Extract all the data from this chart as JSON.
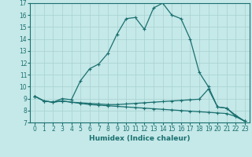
{
  "xlabel": "Humidex (Indice chaleur)",
  "bg_color": "#c5e8e8",
  "grid_color": "#a8d0d0",
  "line_color": "#1a7070",
  "xlim": [
    -0.5,
    23.5
  ],
  "ylim": [
    7,
    17
  ],
  "xticks": [
    0,
    1,
    2,
    3,
    4,
    5,
    6,
    7,
    8,
    9,
    10,
    11,
    12,
    13,
    14,
    15,
    16,
    17,
    18,
    19,
    20,
    21,
    22,
    23
  ],
  "yticks": [
    7,
    8,
    9,
    10,
    11,
    12,
    13,
    14,
    15,
    16,
    17
  ],
  "curve1_x": [
    0,
    1,
    2,
    3,
    4,
    5,
    6,
    7,
    8,
    9,
    10,
    11,
    12,
    13,
    14,
    15,
    16,
    17,
    18,
    19,
    20,
    21,
    22,
    23
  ],
  "curve1_y": [
    9.2,
    8.8,
    8.7,
    9.0,
    8.9,
    10.5,
    11.5,
    11.9,
    12.8,
    14.4,
    15.7,
    15.8,
    14.8,
    16.6,
    17.0,
    16.0,
    15.7,
    14.0,
    11.2,
    10.0,
    8.3,
    8.2,
    7.5,
    7.1
  ],
  "curve2_x": [
    0,
    1,
    2,
    3,
    4,
    5,
    6,
    7,
    8,
    9,
    10,
    11,
    12,
    13,
    14,
    15,
    16,
    17,
    18,
    19,
    20,
    21,
    22,
    23
  ],
  "curve2_y": [
    9.2,
    8.8,
    8.7,
    8.8,
    8.7,
    8.65,
    8.6,
    8.55,
    8.5,
    8.5,
    8.55,
    8.6,
    8.65,
    8.7,
    8.75,
    8.8,
    8.85,
    8.9,
    8.95,
    9.8,
    8.3,
    8.2,
    7.6,
    7.1
  ],
  "curve3_x": [
    0,
    1,
    2,
    3,
    4,
    5,
    6,
    7,
    8,
    9,
    10,
    11,
    12,
    13,
    14,
    15,
    16,
    17,
    18,
    19,
    20,
    21,
    22,
    23
  ],
  "curve3_y": [
    9.2,
    8.8,
    8.7,
    8.8,
    8.7,
    8.6,
    8.5,
    8.45,
    8.4,
    8.35,
    8.3,
    8.25,
    8.2,
    8.15,
    8.1,
    8.05,
    8.0,
    7.95,
    7.9,
    7.85,
    7.8,
    7.75,
    7.5,
    7.1
  ]
}
